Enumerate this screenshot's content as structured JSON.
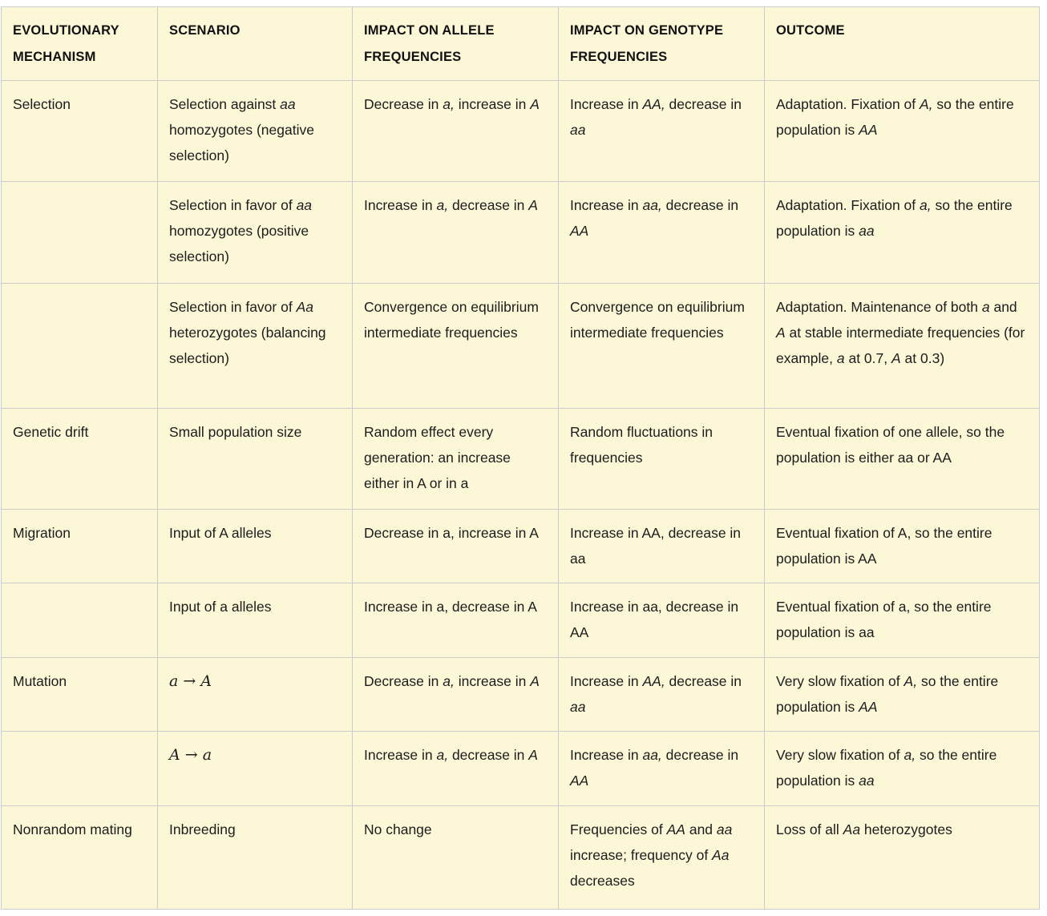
{
  "colors": {
    "cell_background": "#fbf7d7",
    "border": "#cccccc",
    "text": "#1c1c1c"
  },
  "table": {
    "columns": [
      "EVOLUTIONARY MECHANISM",
      "SCENARIO",
      "IMPACT ON ALLELE FREQUENCIES",
      "IMPACT ON GENOTYPE FREQUENCIES",
      "OUTCOME"
    ],
    "rows": [
      [
        "Selection",
        "Selection against *aa* homozygotes (negative selection)",
        "Decrease in *a,* increase in *A*",
        "Increase in *AA,* decrease in *aa*",
        "Adaptation. Fixation of *A,* so the entire population is *AA*"
      ],
      [
        "",
        "Selection in favor of *aa* homozygotes (positive selection)",
        "Increase in *a,* decrease in *A*",
        "Increase in *aa,* decrease in *AA*",
        "Adaptation. Fixation of *a,* so the entire population is *aa*"
      ],
      [
        "",
        "Selection in favor of *Aa* heterozygotes (balancing selection)",
        "Convergence on equilibrium intermediate frequencies",
        "Convergence on equilibrium intermediate frequencies",
        "Adaptation. Maintenance of both *a* and *A* at stable intermediate frequencies (for example, *a* at 0.7, *A* at 0.3)"
      ],
      [
        "Genetic drift",
        "Small population size",
        "Random effect every generation: an increase either in A or in a",
        "Random fluctuations in frequencies",
        "Eventual fixation of one allele, so the population is either aa or AA"
      ],
      [
        "Migration",
        "Input of A alleles",
        "Decrease in a, increase in A",
        "Increase in AA, decrease in aa",
        "Eventual fixation of A, so the entire population is AA"
      ],
      [
        "",
        "Input of a alleles",
        "Increase in a, decrease in A",
        "Increase in aa, decrease in AA",
        "Eventual fixation of a, so the entire population is aa"
      ],
      [
        "Mutation",
        "$a → A$",
        "Decrease in *a,* increase in *A*",
        "Increase in *AA,* decrease in *aa*",
        "Very slow fixation of *A,* so the entire population is *AA*"
      ],
      [
        "",
        "$A → a$",
        "Increase in *a,* decrease in *A*",
        "Increase in *aa,* decrease in *AA*",
        "Very slow fixation of *a,* so the entire population is *aa*"
      ],
      [
        "Nonrandom mating",
        "Inbreeding",
        "No change",
        "Frequencies of *AA* and *aa* increase; frequency of *Aa* decreases",
        "Loss of all *Aa* heterozygotes"
      ]
    ]
  }
}
